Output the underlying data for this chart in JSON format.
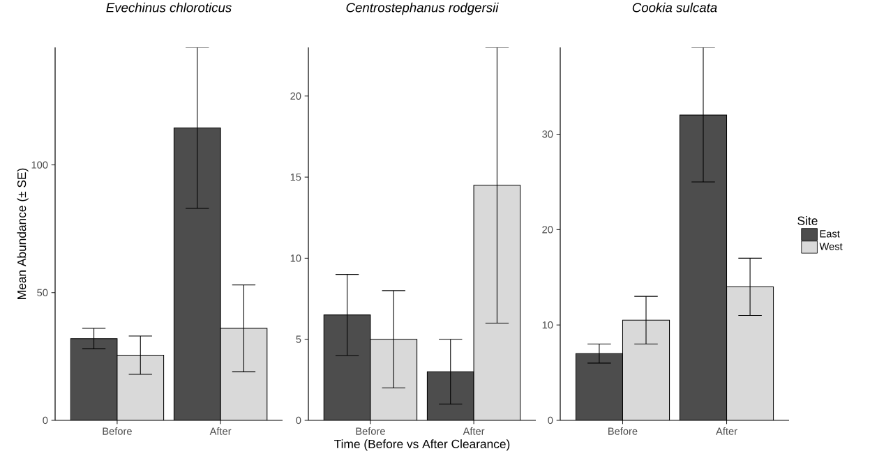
{
  "chart_data": [
    {
      "type": "bar",
      "title": "*Evechinus chloroticus*",
      "ylabel": "Mean Abundance (± SE)",
      "categories": [
        "Before",
        "After"
      ],
      "ylim": [
        0,
        146
      ],
      "yticks": [
        0,
        50,
        100
      ],
      "series": [
        {
          "color": "#4d4d4d",
          "values": [
            32,
            114.5
          ],
          "errors": [
            [
              28,
              36
            ],
            [
              83,
              146
            ]
          ]
        },
        {
          "color": "#d9d9d9",
          "values": [
            25.5,
            36
          ],
          "errors": [
            [
              18,
              33
            ],
            [
              19,
              53
            ]
          ]
        }
      ]
    },
    {
      "type": "bar",
      "title": "*Centrostephanus rodgersii*",
      "xlabel": "Time (Before vs After Clearance)",
      "categories": [
        "Before",
        "After"
      ],
      "ylim": [
        0,
        23
      ],
      "yticks": [
        0,
        5,
        10,
        15,
        20
      ],
      "series": [
        {
          "color": "#4d4d4d",
          "values": [
            6.5,
            3
          ],
          "errors": [
            [
              4,
              9
            ],
            [
              1,
              5
            ]
          ]
        },
        {
          "color": "#d9d9d9",
          "values": [
            5,
            14.5
          ],
          "errors": [
            [
              2,
              8
            ],
            [
              6,
              23
            ]
          ]
        }
      ]
    },
    {
      "type": "bar",
      "title": "*Cookia sulcata*",
      "legend_title": "Site",
      "legend": "right",
      "categories": [
        "Before",
        "After"
      ],
      "ylim": [
        0,
        39.1
      ],
      "yticks": [
        0,
        10,
        20,
        30
      ],
      "series": [
        {
          "name": "East",
          "color": "#4d4d4d",
          "values": [
            7,
            32
          ],
          "errors": [
            [
              6,
              8
            ],
            [
              25,
              39.1
            ]
          ]
        },
        {
          "name": "West",
          "color": "#d9d9d9",
          "values": [
            10.5,
            14
          ],
          "errors": [
            [
              8,
              13
            ],
            [
              11,
              17
            ]
          ]
        }
      ]
    }
  ]
}
